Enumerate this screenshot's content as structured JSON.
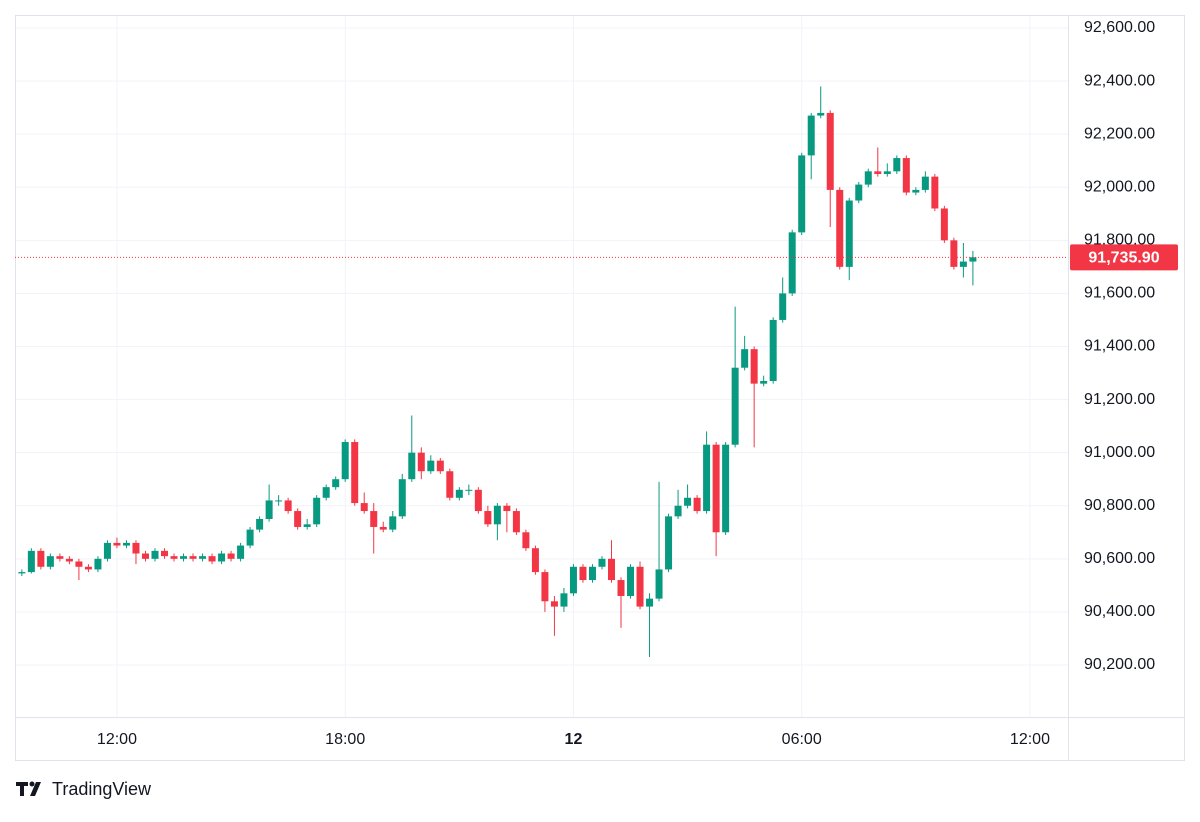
{
  "chart_data": {
    "type": "candlestick",
    "x": [
      9.5,
      9.75,
      10,
      10.25,
      10.5,
      10.75,
      11,
      11.25,
      11.5,
      11.75,
      12,
      12.25,
      12.5,
      12.75,
      13,
      13.25,
      13.5,
      13.75,
      14,
      14.25,
      14.5,
      14.75,
      15,
      15.25,
      15.5,
      15.75,
      16,
      16.25,
      16.5,
      16.75,
      17,
      17.25,
      17.5,
      17.75,
      18,
      18.25,
      18.5,
      18.75,
      19,
      19.25,
      19.5,
      19.75,
      20,
      20.25,
      20.5,
      20.75,
      21,
      21.25,
      21.5,
      21.75,
      22,
      22.25,
      22.5,
      22.75,
      23,
      23.25,
      23.5,
      23.75,
      24,
      24.25,
      24.5,
      24.75,
      25,
      25.25,
      25.5,
      25.75,
      26,
      26.25,
      26.5,
      26.75,
      27,
      27.25,
      27.5,
      27.75,
      28,
      28.25,
      28.5,
      28.75,
      29,
      29.25,
      29.5,
      29.75,
      30,
      30.25,
      30.5,
      30.75,
      31,
      31.25,
      31.5,
      31.75,
      32,
      32.25,
      32.5,
      32.75,
      33,
      33.25,
      33.5,
      33.75,
      34,
      34.25,
      34.5
    ],
    "open": [
      90545,
      90550,
      90630,
      90570,
      90610,
      90600,
      90590,
      90570,
      90560,
      90600,
      90660,
      90650,
      90660,
      90620,
      90600,
      90630,
      90610,
      90600,
      90610,
      90600,
      90610,
      90590,
      90620,
      90600,
      90650,
      90710,
      90750,
      90820,
      90820,
      90780,
      90720,
      90730,
      90830,
      90870,
      90900,
      91040,
      90810,
      90780,
      90720,
      90710,
      90760,
      90900,
      91000,
      90930,
      90970,
      90930,
      90830,
      90860,
      90860,
      90780,
      90730,
      90800,
      90780,
      90700,
      90640,
      90550,
      90440,
      90420,
      90470,
      90570,
      90520,
      90570,
      90600,
      90520,
      90460,
      90570,
      90420,
      90450,
      90560,
      90760,
      90800,
      90830,
      90780,
      91030,
      90700,
      91030,
      91320,
      91390,
      91260,
      91270,
      91500,
      91600,
      91830,
      92120,
      92270,
      92280,
      91990,
      91700,
      91950,
      92010,
      92060,
      92050,
      92060,
      92110,
      91980,
      91990,
      92040,
      91920,
      91800,
      91700,
      91720
    ],
    "high": [
      90560,
      90640,
      90640,
      90620,
      90620,
      90610,
      90600,
      90580,
      90610,
      90670,
      90680,
      90670,
      90670,
      90630,
      90640,
      90640,
      90620,
      90620,
      90620,
      90620,
      90620,
      90630,
      90630,
      90660,
      90720,
      90760,
      90880,
      90840,
      90830,
      90790,
      90750,
      90840,
      90880,
      90910,
      91050,
      91050,
      90850,
      90810,
      90740,
      90780,
      90920,
      91140,
      91020,
      90990,
      90980,
      90940,
      90870,
      90880,
      90870,
      90800,
      90810,
      90810,
      90790,
      90710,
      90650,
      90560,
      90460,
      90490,
      90580,
      90580,
      90580,
      90610,
      90670,
      90530,
      90580,
      90590,
      90470,
      90890,
      90770,
      90860,
      90880,
      90840,
      91080,
      91040,
      91040,
      91550,
      91440,
      91400,
      91290,
      91510,
      91660,
      91840,
      92130,
      92280,
      92380,
      92290,
      92000,
      91960,
      92020,
      92070,
      92150,
      92090,
      92120,
      92120,
      92000,
      92060,
      92050,
      91930,
      91810,
      91790,
      91760
    ],
    "low": [
      90535,
      90545,
      90560,
      90560,
      90590,
      90580,
      90520,
      90550,
      90550,
      90590,
      90640,
      90640,
      90580,
      90590,
      90590,
      90600,
      90590,
      90590,
      90590,
      90590,
      90580,
      90580,
      90590,
      90590,
      90640,
      90700,
      90740,
      90800,
      90770,
      90710,
      90710,
      90720,
      90820,
      90860,
      90890,
      90800,
      90770,
      90620,
      90700,
      90700,
      90750,
      90890,
      90900,
      90920,
      90920,
      90820,
      90820,
      90840,
      90770,
      90720,
      90670,
      90700,
      90690,
      90630,
      90540,
      90400,
      90310,
      90400,
      90460,
      90510,
      90510,
      90560,
      90510,
      90340,
      90450,
      90410,
      90230,
      90440,
      90550,
      90750,
      90790,
      90770,
      90770,
      90610,
      90690,
      91020,
      91310,
      91020,
      91250,
      91260,
      91490,
      91590,
      91820,
      92030,
      92260,
      91850,
      91690,
      91650,
      91940,
      92000,
      92040,
      92040,
      92050,
      91970,
      91970,
      91980,
      91910,
      91790,
      91690,
      91660,
      91630
    ],
    "close": [
      90550,
      90630,
      90570,
      90610,
      90600,
      90590,
      90570,
      90560,
      90600,
      90660,
      90650,
      90660,
      90620,
      90600,
      90630,
      90610,
      90600,
      90610,
      90600,
      90610,
      90590,
      90620,
      90600,
      90650,
      90710,
      90750,
      90820,
      90820,
      90780,
      90720,
      90730,
      90830,
      90870,
      90900,
      91040,
      90810,
      90780,
      90720,
      90710,
      90760,
      90900,
      91000,
      90930,
      90970,
      90930,
      90830,
      90860,
      90860,
      90780,
      90730,
      90800,
      90780,
      90700,
      90640,
      90550,
      90440,
      90420,
      90470,
      90570,
      90520,
      90570,
      90600,
      90520,
      90460,
      90570,
      90420,
      90450,
      90560,
      90760,
      90800,
      90830,
      90780,
      91030,
      90700,
      91030,
      91320,
      91390,
      91260,
      91270,
      91500,
      91600,
      91830,
      92120,
      92270,
      92280,
      91990,
      91700,
      91950,
      92010,
      92060,
      92050,
      92060,
      92110,
      91980,
      91990,
      92040,
      91920,
      91800,
      91700,
      91720,
      91735.9
    ],
    "up_color": "#089981",
    "down_color": "#f23645",
    "xlim": [
      9.32,
      37
    ],
    "xticks": [
      {
        "value": 12,
        "label": "12:00"
      },
      {
        "value": 18,
        "label": "18:00"
      },
      {
        "value": 24,
        "label": "12"
      },
      {
        "value": 30,
        "label": "06:00"
      },
      {
        "value": 36,
        "label": "12:00"
      }
    ],
    "ylim": [
      90004,
      92649
    ],
    "yticks": [
      {
        "value": 90200,
        "label": "90,200.00"
      },
      {
        "value": 90400,
        "label": "90,400.00"
      },
      {
        "value": 90600,
        "label": "90,600.00"
      },
      {
        "value": 90800,
        "label": "90,800.00"
      },
      {
        "value": 91000,
        "label": "91,000.00"
      },
      {
        "value": 91200,
        "label": "91,200.00"
      },
      {
        "value": 91400,
        "label": "91,400.00"
      },
      {
        "value": 91600,
        "label": "91,600.00"
      },
      {
        "value": 91800,
        "label": "91,800.00"
      },
      {
        "value": 92000,
        "label": "92,000.00"
      },
      {
        "value": 92200,
        "label": "92,200.00"
      },
      {
        "value": 92400,
        "label": "92,400.00"
      },
      {
        "value": 92600,
        "label": "92,600.00"
      }
    ],
    "grid": true,
    "last_price": {
      "value": 91735.9,
      "label": "91,735.90"
    },
    "last_price_color": "#f23645"
  },
  "branding": "TradingView"
}
